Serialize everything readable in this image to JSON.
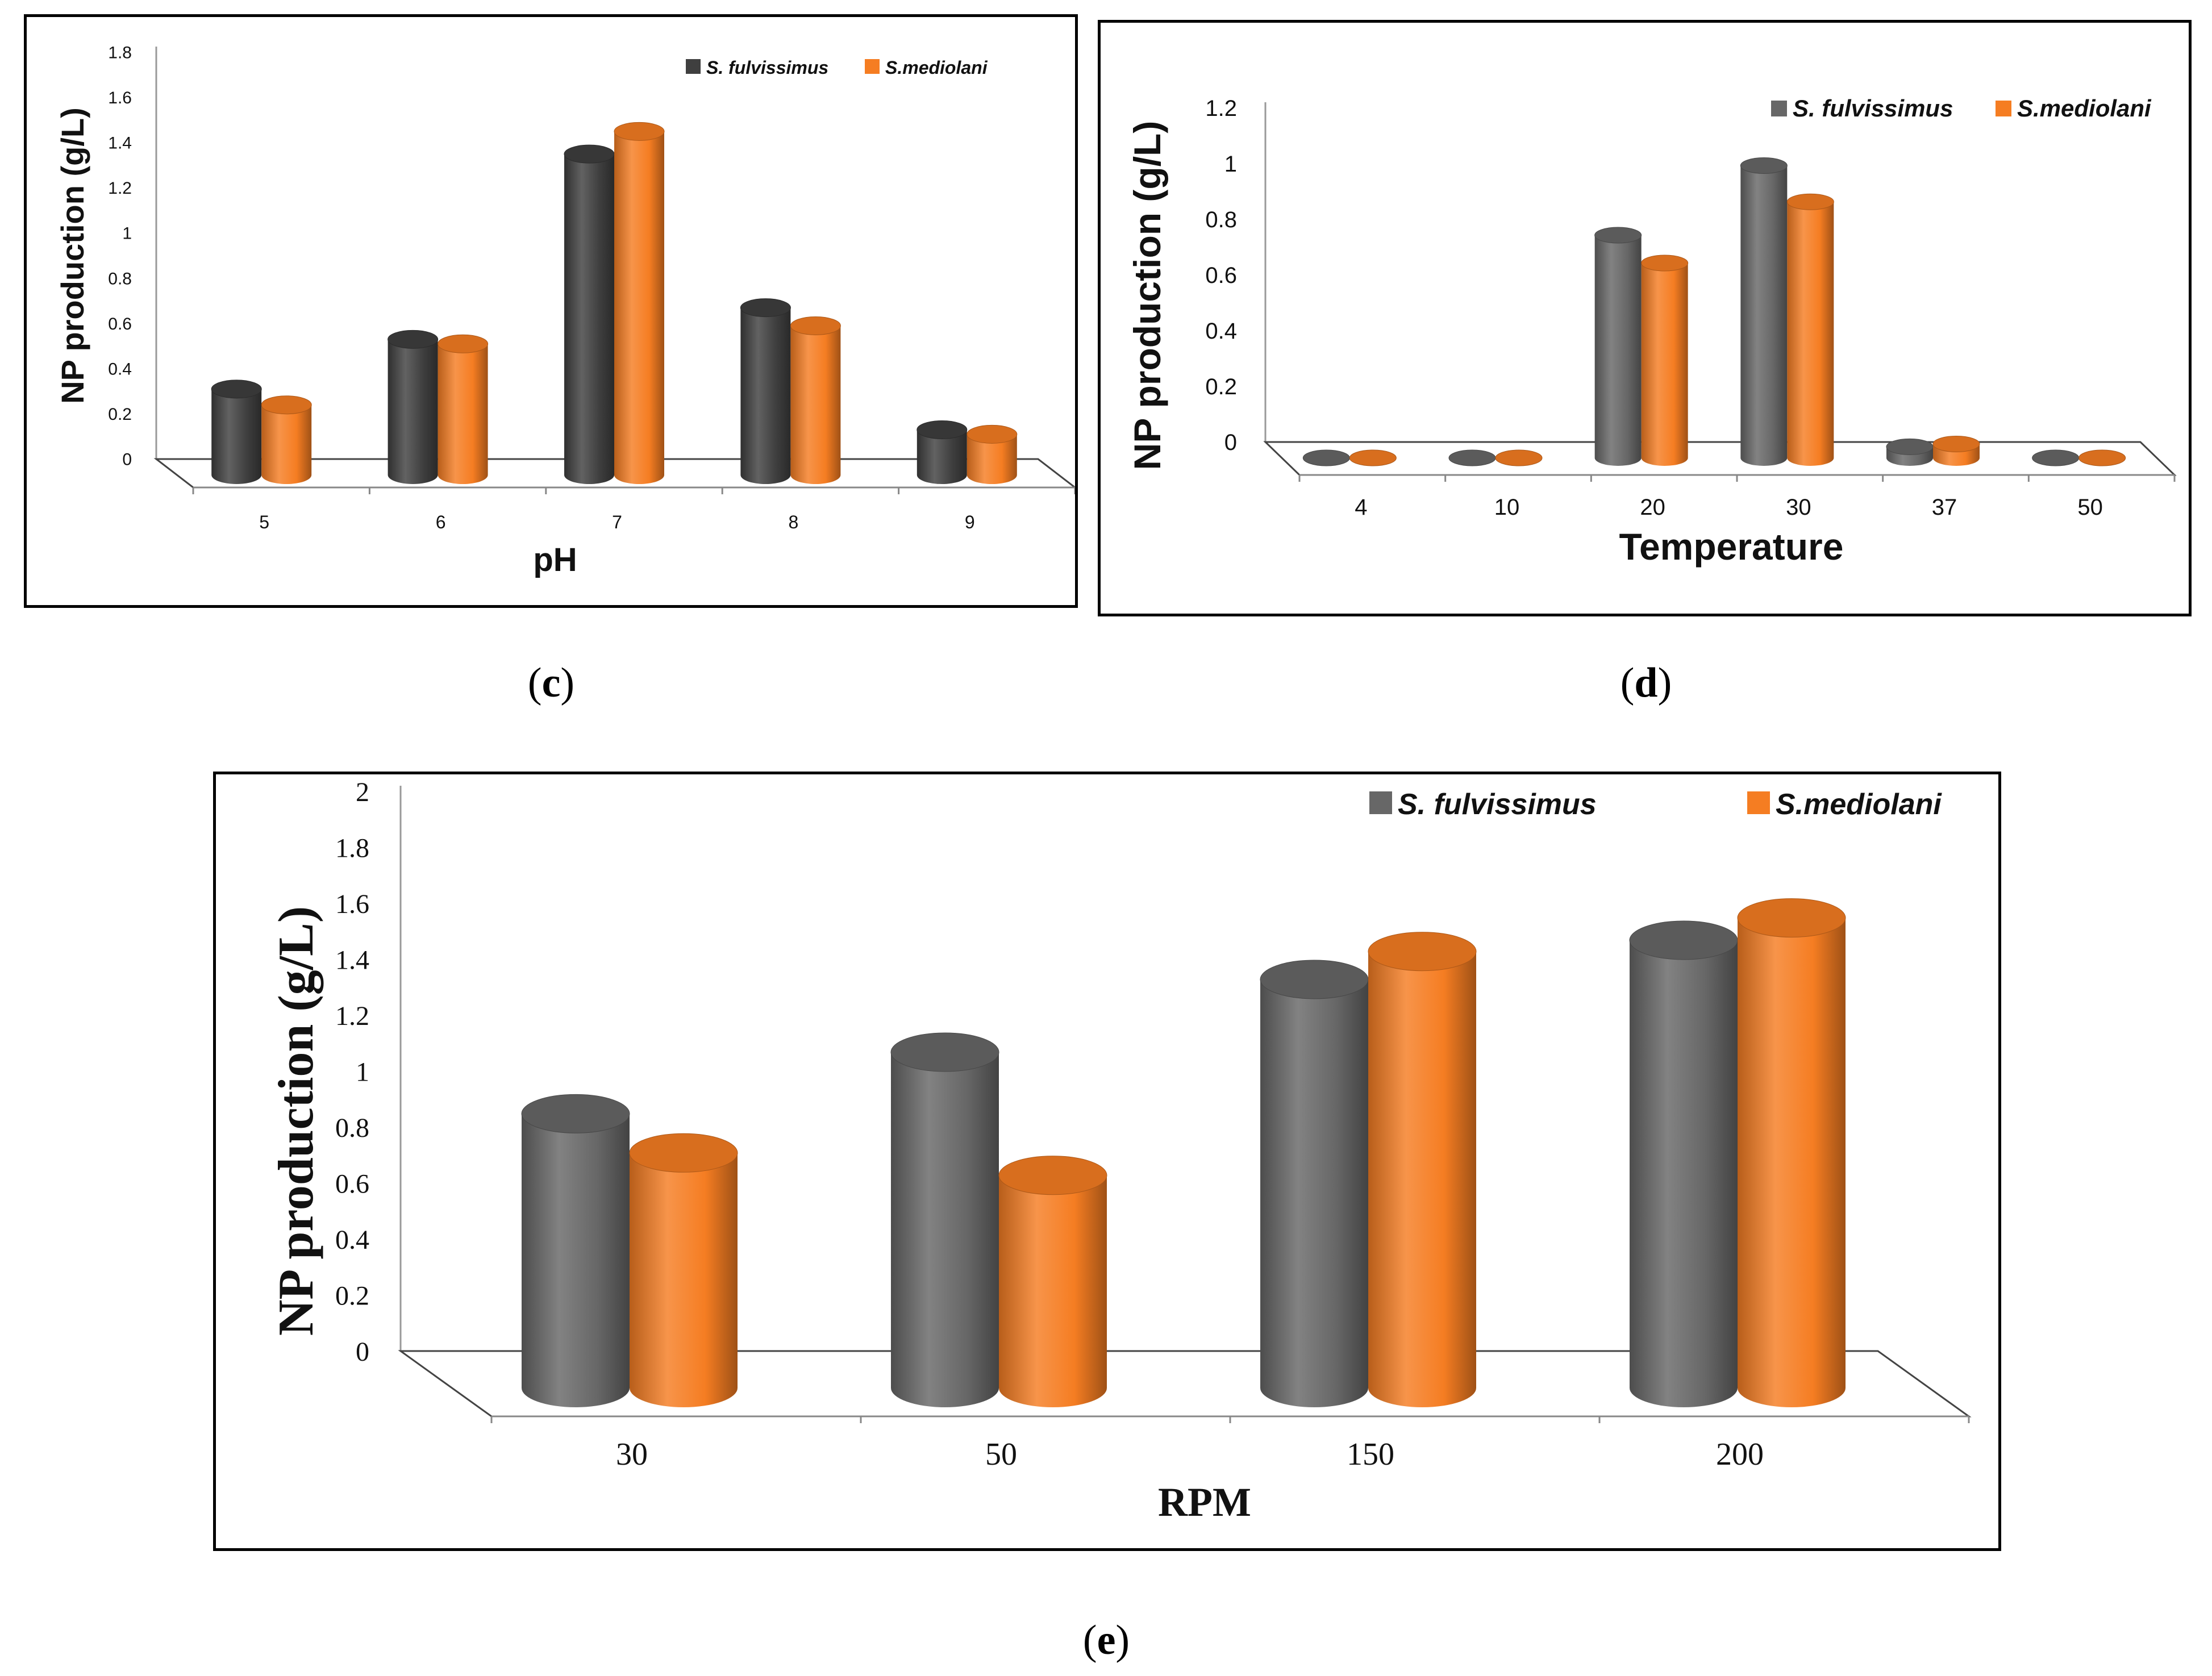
{
  "chart_data": [
    {
      "type": "bar",
      "panel": "c",
      "title": "",
      "xlabel": "pH",
      "ylabel": "NP production (g/L)",
      "ylim": [
        0,
        1.8
      ],
      "yticks": [
        "0",
        "0.2",
        "0.4",
        "0.6",
        "0.8",
        "1",
        "1.2",
        "1.4",
        "1.6",
        "1.8"
      ],
      "categories": [
        "5",
        "6",
        "7",
        "8",
        "9"
      ],
      "series": [
        {
          "name": "S. fulvissimus",
          "color": "#3f3f3f",
          "values": [
            0.38,
            0.6,
            1.42,
            0.74,
            0.2
          ]
        },
        {
          "name": "S.mediolani",
          "color": "#f57d22",
          "values": [
            0.31,
            0.58,
            1.52,
            0.66,
            0.18
          ]
        }
      ],
      "legend_position": "top-right"
    },
    {
      "type": "bar",
      "panel": "d",
      "title": "",
      "xlabel": "Temperature",
      "ylabel": "NP production (g/L)",
      "ylim": [
        0,
        1.2
      ],
      "yticks": [
        "0",
        "0.2",
        "0.4",
        "0.6",
        "0.8",
        "1",
        "1.2"
      ],
      "categories": [
        "4",
        "10",
        "20",
        "30",
        "37",
        "50"
      ],
      "series": [
        {
          "name": "S. fulvissimus",
          "color": "#676767",
          "values": [
            0,
            0,
            0.8,
            1.05,
            0.04,
            0
          ]
        },
        {
          "name": "S.mediolani",
          "color": "#f57d22",
          "values": [
            0,
            0,
            0.7,
            0.92,
            0.05,
            0
          ]
        }
      ],
      "legend_position": "top-right"
    },
    {
      "type": "bar",
      "panel": "e",
      "title": "",
      "xlabel": "RPM",
      "ylabel": "NP production (g/L)",
      "ylim": [
        0,
        2
      ],
      "yticks": [
        "0",
        "0.2",
        "0.4",
        "0.6",
        "0.8",
        "1",
        "1.2",
        "1.4",
        "1.6",
        "1.8",
        "2"
      ],
      "categories": [
        "30",
        "50",
        "150",
        "200"
      ],
      "series": [
        {
          "name": "S. fulvissimus",
          "color": "#676767",
          "values": [
            0.98,
            1.2,
            1.46,
            1.6
          ]
        },
        {
          "name": "S.mediolani",
          "color": "#f57d22",
          "values": [
            0.84,
            0.76,
            1.56,
            1.68
          ]
        }
      ],
      "legend_position": "top-right"
    }
  ],
  "captions": {
    "c": "c",
    "d": "d",
    "e": "e"
  }
}
